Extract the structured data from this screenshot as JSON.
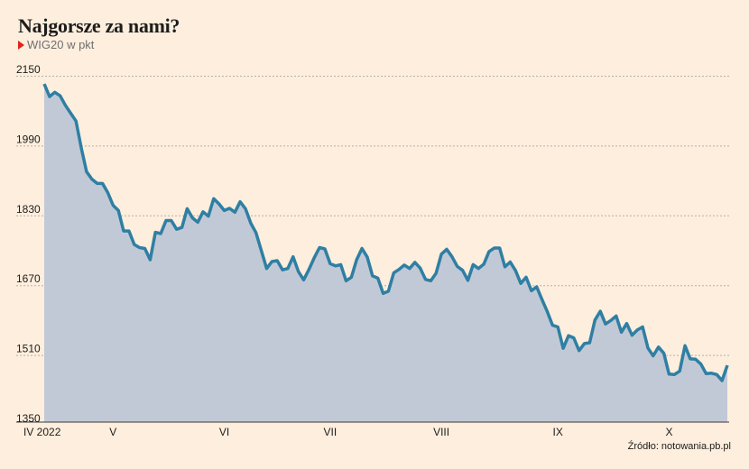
{
  "title": "Najgorsze za nami?",
  "subtitle": "WIG20 w pkt",
  "source": "Źródło: notowania.pb.pl",
  "colors": {
    "line": "#2f7fa3",
    "area": "#c2c9d6",
    "background": "#fdeede",
    "marker": "#e2231a"
  },
  "chart_data": {
    "type": "area",
    "ylim": [
      1350,
      2150
    ],
    "yticks": [
      1350,
      1510,
      1670,
      1830,
      1990,
      2150
    ],
    "grid": "horizontal dashed",
    "xtick_labels": [
      {
        "label": "IV 2022",
        "index": 0
      },
      {
        "label": "V",
        "index": 13
      },
      {
        "label": "VI",
        "index": 34
      },
      {
        "label": "VII",
        "index": 54
      },
      {
        "label": "VIII",
        "index": 75
      },
      {
        "label": "IX",
        "index": 97
      },
      {
        "label": "X",
        "index": 118
      }
    ],
    "series": [
      {
        "values": [
          2125,
          2096,
          2106,
          2098,
          2076,
          2058,
          2040,
          1978,
          1924,
          1907,
          1897,
          1897,
          1876,
          1847,
          1835,
          1788,
          1788,
          1757,
          1750,
          1748,
          1722,
          1785,
          1782,
          1812,
          1812,
          1792,
          1796,
          1839,
          1818,
          1808,
          1832,
          1822,
          1862,
          1850,
          1835,
          1840,
          1831,
          1855,
          1839,
          1806,
          1784,
          1743,
          1702,
          1718,
          1720,
          1699,
          1702,
          1729,
          1695,
          1676,
          1700,
          1727,
          1750,
          1747,
          1713,
          1708,
          1711,
          1674,
          1682,
          1722,
          1748,
          1728,
          1685,
          1680,
          1645,
          1650,
          1692,
          1700,
          1710,
          1702,
          1716,
          1703,
          1677,
          1674,
          1691,
          1735,
          1746,
          1729,
          1707,
          1698,
          1675,
          1711,
          1702,
          1712,
          1741,
          1749,
          1749,
          1706,
          1717,
          1697,
          1668,
          1682,
          1651,
          1660,
          1631,
          1603,
          1572,
          1568,
          1519,
          1548,
          1543,
          1514,
          1530,
          1532,
          1584,
          1604,
          1575,
          1583,
          1593,
          1556,
          1576,
          1549,
          1561,
          1568,
          1520,
          1502,
          1522,
          1508,
          1460,
          1459,
          1467,
          1525,
          1495,
          1494,
          1483,
          1461,
          1462,
          1459,
          1445,
          1480
        ]
      }
    ]
  }
}
